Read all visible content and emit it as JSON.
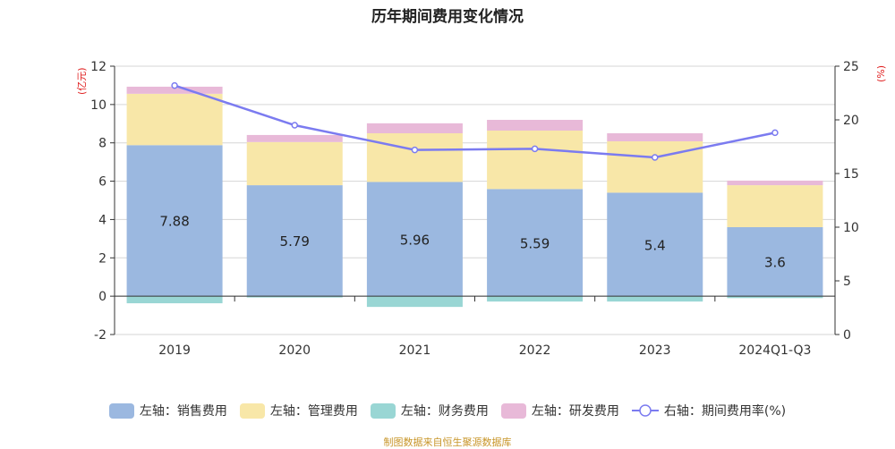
{
  "chart_data": {
    "type": "bar",
    "title": "历年期间费用变化情况",
    "categories": [
      "2019",
      "2020",
      "2021",
      "2022",
      "2023",
      "2024Q1-Q3"
    ],
    "left_axis": {
      "label": "(亿元)",
      "ylim": [
        -2,
        12
      ],
      "ticks": [
        -2,
        0,
        2,
        4,
        6,
        8,
        10,
        12
      ]
    },
    "right_axis": {
      "label": "(%)",
      "ylim": [
        0,
        25
      ],
      "ticks": [
        0,
        5,
        10,
        15,
        20,
        25
      ]
    },
    "grid": true,
    "legend_placement": "bottom",
    "series": [
      {
        "name": "左轴：销售费用",
        "axis": "left",
        "type": "bar",
        "color": "#9bb8e0",
        "values": [
          7.88,
          5.79,
          5.96,
          5.59,
          5.4,
          3.6
        ],
        "labels": [
          "7.88",
          "5.79",
          "5.96",
          "5.59",
          "5.4",
          "3.6"
        ]
      },
      {
        "name": "左轴：管理费用",
        "axis": "left",
        "type": "bar",
        "color": "#f8e7a8",
        "values": [
          2.68,
          2.25,
          2.54,
          3.05,
          2.68,
          2.19
        ]
      },
      {
        "name": "左轴：财务费用",
        "axis": "left",
        "type": "bar",
        "color": "#99d6d4",
        "values": [
          -0.37,
          -0.07,
          -0.56,
          -0.28,
          -0.28,
          -0.1
        ]
      },
      {
        "name": "左轴：研发费用",
        "axis": "left",
        "type": "bar",
        "color": "#e8b9d8",
        "values": [
          0.37,
          0.37,
          0.52,
          0.56,
          0.42,
          0.24
        ]
      },
      {
        "name": "右轴：期间费用率(%)",
        "axis": "right",
        "type": "line",
        "color": "#7b7bf0",
        "values": [
          23.2,
          19.5,
          17.2,
          17.3,
          16.5,
          18.8
        ]
      }
    ]
  },
  "source": "制图数据来自恒生聚源数据库"
}
